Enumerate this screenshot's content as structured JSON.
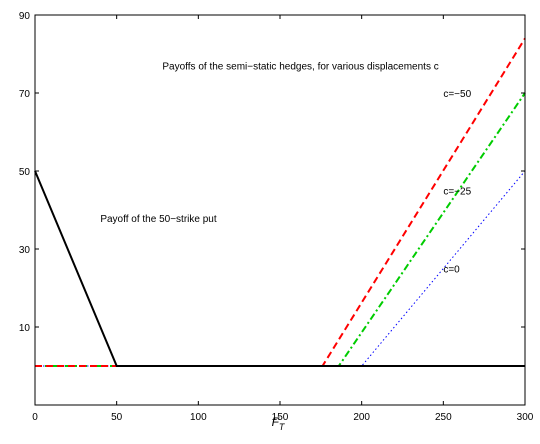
{
  "chart_data": {
    "type": "line",
    "xlabel": "F",
    "xlabel_sub": "T",
    "xlim": [
      0,
      300
    ],
    "ylim": [
      -10,
      90
    ],
    "xticks": [
      0,
      50,
      100,
      150,
      200,
      250,
      300
    ],
    "yticks": [
      10,
      30,
      50,
      70,
      90
    ],
    "grid": false,
    "series": [
      {
        "role": "put",
        "color": "#000000",
        "dash": "solid",
        "x": [
          0,
          50,
          300
        ],
        "y": [
          50,
          0,
          0
        ]
      },
      {
        "role": "hedge_c0",
        "color": "#0000ff",
        "dash": "dotted",
        "x": [
          0,
          200,
          300
        ],
        "y": [
          0,
          0,
          50
        ]
      },
      {
        "role": "hedge_c25",
        "color": "#00cc00",
        "dash": "dashdot",
        "x": [
          0,
          186,
          300
        ],
        "y": [
          0,
          0,
          70
        ]
      },
      {
        "role": "hedge_c50",
        "color": "#ff0000",
        "dash": "dashed",
        "x": [
          0,
          176,
          300
        ],
        "y": [
          0,
          0,
          84
        ]
      }
    ],
    "annotations": [
      {
        "text": "Payoffs of the semi−static hedges, for various displacements c",
        "x": 78,
        "y": 77
      },
      {
        "text": "Payoff of the 50−strike put",
        "x": 40,
        "y": 38
      },
      {
        "text": "c=−50",
        "x": 250,
        "y": 70
      },
      {
        "text": "c=−25",
        "x": 250,
        "y": 45
      },
      {
        "text": "c=0",
        "x": 250,
        "y": 25
      }
    ]
  }
}
